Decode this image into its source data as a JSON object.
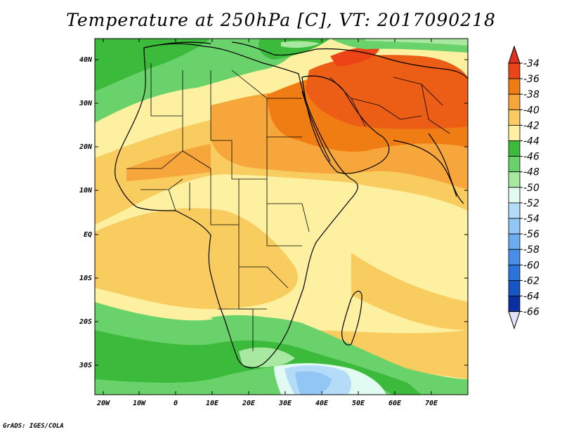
{
  "title": "Temperature at 250hPa [C], VT: 2017090218",
  "credit": "GrADS: IGES/COLA",
  "map": {
    "lat_labels": [
      "40N",
      "30N",
      "20N",
      "10N",
      "EQ",
      "10S",
      "20S",
      "30S"
    ],
    "lon_labels": [
      "20W",
      "10W",
      "0",
      "10E",
      "20E",
      "30E",
      "40E",
      "50E",
      "60E",
      "70E"
    ]
  },
  "colorbar": {
    "labels": [
      "-34",
      "-36",
      "-38",
      "-40",
      "-42",
      "-44",
      "-46",
      "-48",
      "-50",
      "-52",
      "-54",
      "-56",
      "-58",
      "-60",
      "-62",
      "-64",
      "-66"
    ],
    "colors": [
      "#ec4416",
      "#f07c14",
      "#f6a63a",
      "#f9cc60",
      "#fdf0a0",
      "#3cba3c",
      "#6ad26a",
      "#a8e8a0",
      "#e2fbf2",
      "#b4dcf8",
      "#92c6f4",
      "#6aaef0",
      "#4690ea",
      "#2a74dc",
      "#1656c4",
      "#0c2ea0",
      "#0a1470"
    ],
    "top_arrow": "#e0321e",
    "bottom_arrow": "#e2e2f8"
  }
}
